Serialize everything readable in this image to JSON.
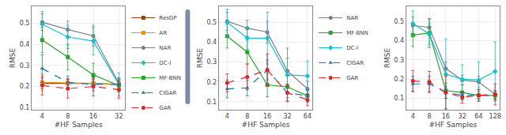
{
  "chart_data": [
    {
      "type": "line",
      "x_label": "#HF Samples",
      "y_label": "RMSE",
      "log": "x",
      "grid": true,
      "legend": "upper right",
      "x": [
        4,
        8,
        16,
        32
      ],
      "xlim": [
        3.0,
        38
      ],
      "xticks": [
        4,
        8,
        16,
        32
      ],
      "ylim": [
        0.09,
        0.58
      ],
      "yticks": [
        0.1,
        0.2,
        0.3,
        0.4,
        0.5
      ],
      "series": [
        {
          "name": "ResGP",
          "color": "#8B4513",
          "marker": "square",
          "line_style": "solid",
          "values": [
            0.215,
            0.215,
            0.215,
            0.21
          ],
          "yerr": [
            0.025,
            0.02,
            0.02,
            0.02
          ]
        },
        {
          "name": "AR",
          "color": "#FF8C00",
          "marker": "square",
          "line_style": "solid",
          "values": [
            0.22,
            0.218,
            0.215,
            0.21
          ],
          "yerr": [
            0.04,
            0.02,
            0.02,
            0.02
          ]
        },
        {
          "name": "NAR",
          "color": "#7f7f7f",
          "marker": "circle",
          "line_style": "solid",
          "values": [
            0.505,
            0.47,
            0.44,
            0.215
          ],
          "yerr": [
            0.04,
            0.04,
            0.05,
            0.025
          ]
        },
        {
          "name": "DC-I",
          "color": "#17becf",
          "marker": "diamond",
          "line_style": "solid",
          "values": [
            0.495,
            0.435,
            0.415,
            0.21
          ],
          "yerr": [
            0.06,
            0.055,
            0.065,
            0.055
          ]
        },
        {
          "name": "MF-BNN",
          "color": "#2ca02c",
          "marker": "square",
          "line_style": "solid",
          "values": [
            0.42,
            0.34,
            0.255,
            0.205
          ],
          "yerr": [
            0.06,
            0.06,
            0.055,
            0.03
          ]
        },
        {
          "name": "CIGAR",
          "color": "#1f77b4",
          "marker": "triangle-up",
          "line_style": "dashed",
          "values": [
            0.285,
            0.22,
            0.21,
            0.21
          ],
          "yerr": [
            0.065,
            0.03,
            0.03,
            0.03
          ]
        },
        {
          "name": "GAR",
          "color": "#d62728",
          "marker": "circle",
          "line_style": "dashed",
          "values": [
            0.205,
            0.19,
            0.2,
            0.185
          ],
          "yerr": [
            0.045,
            0.045,
            0.045,
            0.04
          ]
        }
      ]
    },
    {
      "type": "line",
      "x_label": "#HF Samples",
      "y_label": "RMSE",
      "log": "x",
      "grid": true,
      "legend": "upper right",
      "x": [
        4,
        8,
        16,
        32,
        64
      ],
      "xlim": [
        3.0,
        76
      ],
      "xticks": [
        4,
        8,
        16,
        32,
        64
      ],
      "ylim": [
        0.06,
        0.58
      ],
      "yticks": [
        0.1,
        0.2,
        0.3,
        0.4,
        0.5
      ],
      "series": [
        {
          "name": "NAR",
          "color": "#7f7f7f",
          "marker": "circle",
          "line_style": "solid",
          "values": [
            0.505,
            0.47,
            0.45,
            0.255,
            0.165
          ],
          "yerr": [
            0.045,
            0.04,
            0.055,
            0.115,
            0.04
          ]
        },
        {
          "name": "MF-BNN",
          "color": "#2ca02c",
          "marker": "square",
          "line_style": "solid",
          "values": [
            0.43,
            0.35,
            0.185,
            0.175,
            0.13
          ],
          "yerr": [
            0.06,
            0.06,
            0.06,
            0.055,
            0.03
          ]
        },
        {
          "name": "DC-I",
          "color": "#17becf",
          "marker": "diamond",
          "line_style": "solid",
          "values": [
            0.5,
            0.42,
            0.42,
            0.235,
            0.23
          ],
          "yerr": [
            0.065,
            0.055,
            0.13,
            0.085,
            0.075
          ]
        },
        {
          "name": "CIGAR",
          "color": "#1f77b4",
          "marker": "triangle-up",
          "line_style": "dashed",
          "values": [
            0.165,
            0.17,
            0.26,
            0.145,
            0.13
          ],
          "yerr": [
            0.045,
            0.04,
            0.05,
            0.04,
            0.03
          ]
        },
        {
          "name": "GAR",
          "color": "#d62728",
          "marker": "circle",
          "line_style": "dashed",
          "values": [
            0.195,
            0.225,
            0.26,
            0.145,
            0.11
          ],
          "yerr": [
            0.045,
            0.065,
            0.08,
            0.045,
            0.03
          ]
        }
      ]
    },
    {
      "type": "line",
      "x_label": "#HF Samples",
      "y_label": "RMSE",
      "log": "x",
      "grid": true,
      "x": [
        4,
        8,
        16,
        32,
        64,
        128
      ],
      "xlim": [
        3.0,
        155
      ],
      "xticks": [
        4,
        8,
        16,
        32,
        64,
        128
      ],
      "ylim": [
        0.04,
        0.58
      ],
      "yticks": [
        0.1,
        0.2,
        0.3,
        0.4,
        0.5
      ],
      "series": [
        {
          "name": "NAR",
          "color": "#7f7f7f",
          "marker": "circle",
          "line_style": "solid",
          "values": [
            0.48,
            0.47,
            0.255,
            0.195,
            0.185,
            0.12
          ],
          "yerr": [
            0.045,
            0.045,
            0.035,
            0.025,
            0.03,
            0.02
          ]
        },
        {
          "name": "MF-BNN",
          "color": "#2ca02c",
          "marker": "square",
          "line_style": "solid",
          "values": [
            0.43,
            0.44,
            0.14,
            0.13,
            0.115,
            0.115
          ],
          "yerr": [
            0.06,
            0.075,
            0.04,
            0.04,
            0.03,
            0.025
          ]
        },
        {
          "name": "DC-I",
          "color": "#17becf",
          "marker": "diamond",
          "line_style": "solid",
          "values": [
            0.49,
            0.435,
            0.225,
            0.2,
            0.195,
            0.24
          ],
          "yerr": [
            0.065,
            0.055,
            0.185,
            0.075,
            0.095,
            0.155
          ]
        },
        {
          "name": "CIGAR",
          "color": "#1f77b4",
          "marker": "triangle-up",
          "line_style": "dashed",
          "values": [
            0.175,
            0.175,
            0.13,
            0.115,
            0.115,
            0.115
          ],
          "yerr": [
            0.04,
            0.04,
            0.03,
            0.02,
            0.02,
            0.02
          ]
        },
        {
          "name": "GAR",
          "color": "#d62728",
          "marker": "circle",
          "line_style": "dashed",
          "values": [
            0.19,
            0.185,
            0.13,
            0.105,
            0.115,
            0.12
          ],
          "yerr": [
            0.055,
            0.055,
            0.085,
            0.03,
            0.03,
            0.055
          ]
        }
      ]
    }
  ]
}
